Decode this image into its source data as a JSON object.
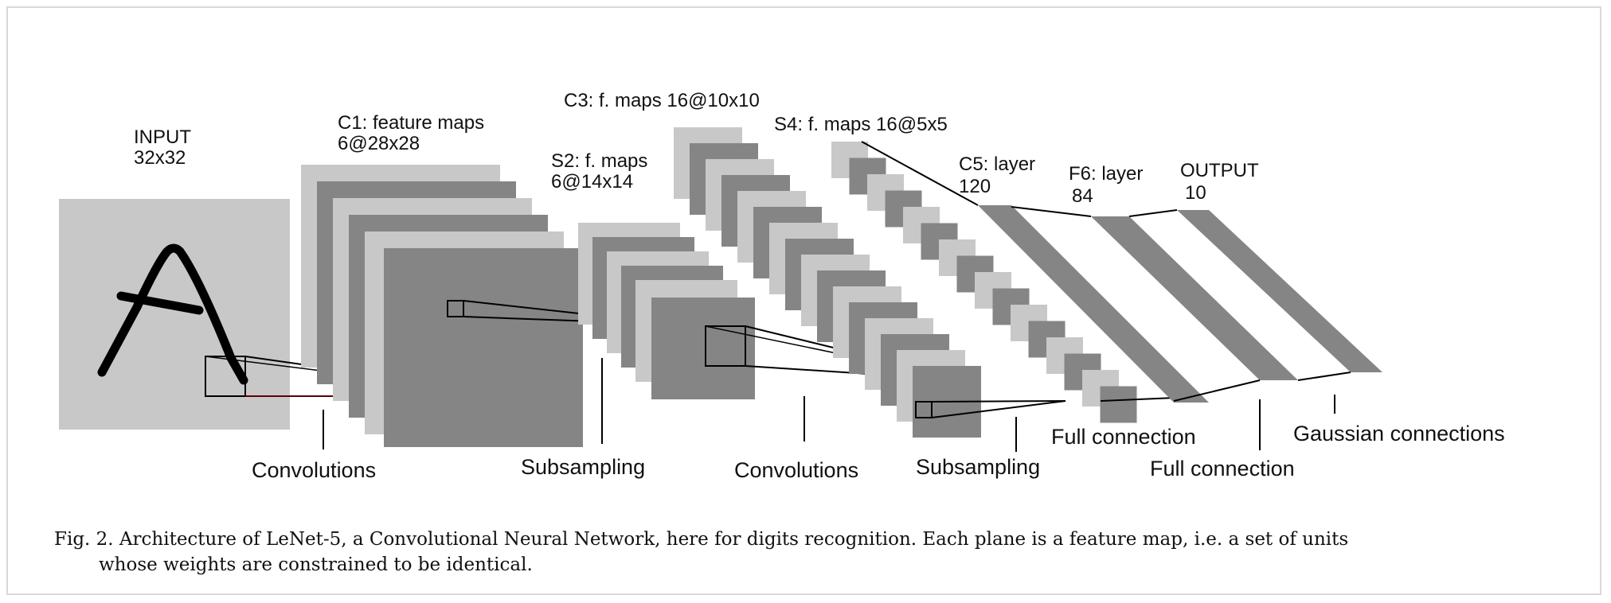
{
  "layers": {
    "input": {
      "name": "INPUT",
      "size": "32x32"
    },
    "c1": {
      "name": "C1: feature maps",
      "size": "6@28x28"
    },
    "s2": {
      "name": "S2: f. maps",
      "size": "6@14x14"
    },
    "c3": {
      "name": "C3: f. maps 16@10x10"
    },
    "s4": {
      "name": "S4: f. maps 16@5x5"
    },
    "c5": {
      "name": "C5: layer",
      "size": "120"
    },
    "f6": {
      "name": "F6: layer",
      "size": "84"
    },
    "output": {
      "name": "OUTPUT",
      "size": "10"
    }
  },
  "operations": {
    "conv1": "Convolutions",
    "sub1": "Subsampling",
    "conv2": "Convolutions",
    "sub2": "Subsampling",
    "full1": "Full connection",
    "full2": "Full connection",
    "gauss": "Gaussian connections"
  },
  "caption": {
    "line1": "Fig. 2.   Architecture of LeNet-5, a Convolutional Neural Network, here for digits recognition. Each plane is a feature map, i.e. a set of units",
    "line2": "whose weights are constrained to be identical."
  },
  "colors": {
    "light": "#c8c8c8",
    "dark": "#858585",
    "line": "#111111"
  }
}
